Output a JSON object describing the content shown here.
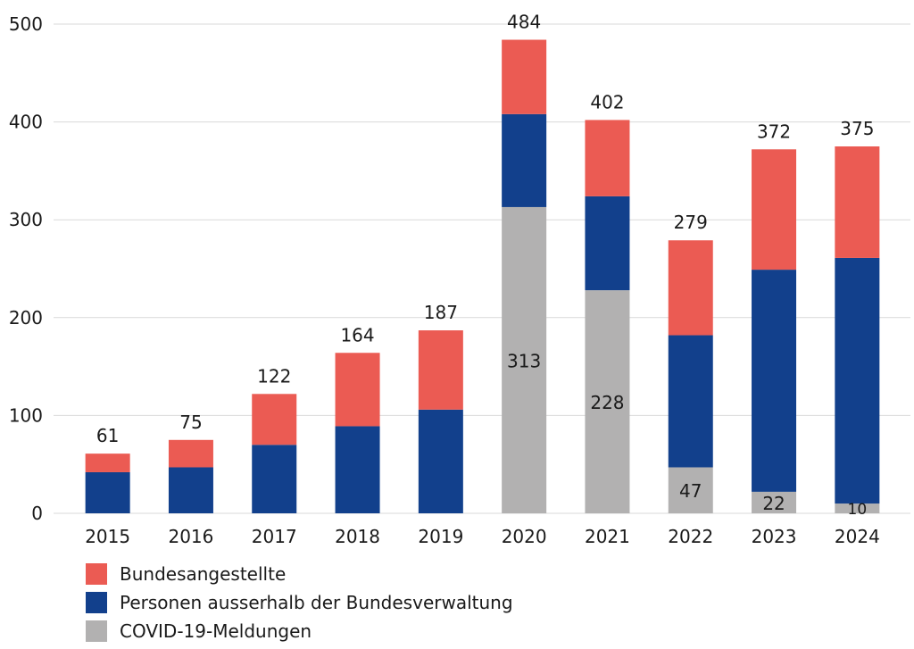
{
  "chart_data": {
    "type": "bar",
    "stacked": true,
    "categories": [
      "2015",
      "2016",
      "2017",
      "2018",
      "2019",
      "2020",
      "2021",
      "2022",
      "2023",
      "2024"
    ],
    "series": [
      {
        "name": "COVID-19-Meldungen",
        "color": "#b2b1b1",
        "values": [
          0,
          0,
          0,
          0,
          0,
          313,
          228,
          47,
          22,
          10
        ]
      },
      {
        "name": "Personen ausserhalb der Bundesverwaltung",
        "color": "#12408c",
        "values": [
          42,
          47,
          70,
          89,
          106,
          95,
          96,
          135,
          227,
          251
        ]
      },
      {
        "name": "Bundesangestellte",
        "color": "#eb5b53",
        "values": [
          19,
          28,
          52,
          75,
          81,
          76,
          78,
          97,
          123,
          114
        ]
      }
    ],
    "totals": [
      61,
      75,
      122,
      164,
      187,
      484,
      402,
      279,
      372,
      375
    ],
    "covid_labels": [
      "",
      "",
      "",
      "",
      "",
      "313",
      "228",
      "47",
      "22",
      "10"
    ],
    "y_ticks": [
      "0",
      "100",
      "200",
      "300",
      "400",
      "500"
    ],
    "ylim": [
      0,
      500
    ],
    "grid": true,
    "legend_position": "bottom-left"
  },
  "legend": [
    {
      "label": "Bundesangestellte",
      "color": "#eb5b53"
    },
    {
      "label": "Personen ausserhalb der Bundesverwaltung",
      "color": "#12408c"
    },
    {
      "label": "COVID-19-Meldungen",
      "color": "#b2b1b1"
    }
  ]
}
